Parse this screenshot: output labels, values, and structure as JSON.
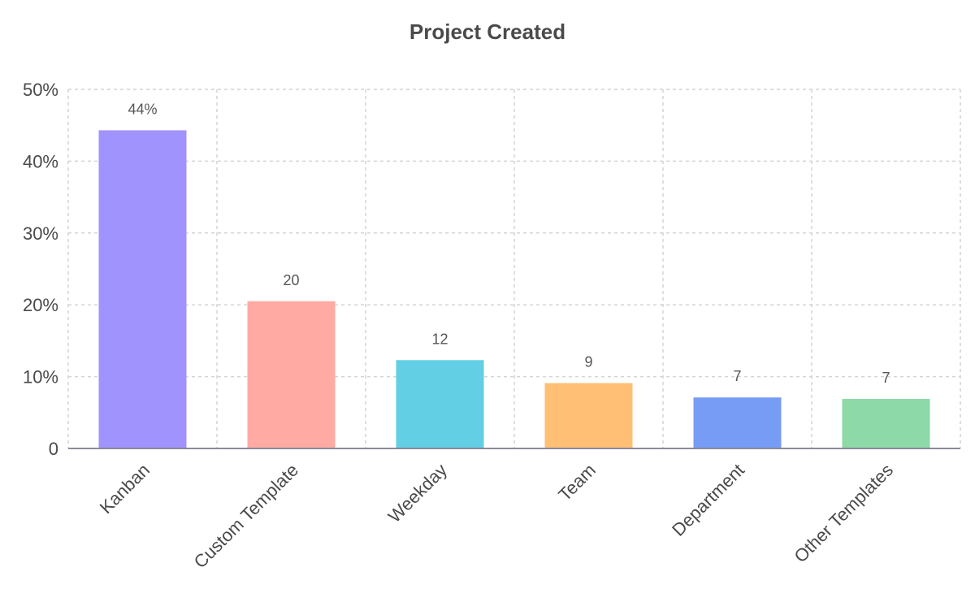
{
  "chart_data": {
    "type": "bar",
    "title": "Project Created",
    "categories": [
      "Kanban",
      "Custom Template",
      "Weekday",
      "Team",
      "Department",
      "Other Templates"
    ],
    "values": [
      44.3,
      20.5,
      12.3,
      9.1,
      7.1,
      6.9
    ],
    "data_labels": [
      "44%",
      "20",
      "12",
      "9",
      "7",
      "7"
    ],
    "colors": [
      "#a093fd",
      "#ffaaa3",
      "#62cfe4",
      "#ffbf74",
      "#779cf5",
      "#8dd9a8"
    ],
    "ylim": [
      0,
      50
    ],
    "yticks": [
      0,
      10,
      20,
      30,
      40,
      50
    ],
    "ytick_labels": [
      "0",
      "10%",
      "20%",
      "30%",
      "40%",
      "50%"
    ],
    "xlabel": "",
    "ylabel": "",
    "grid": true,
    "legend": "none"
  }
}
